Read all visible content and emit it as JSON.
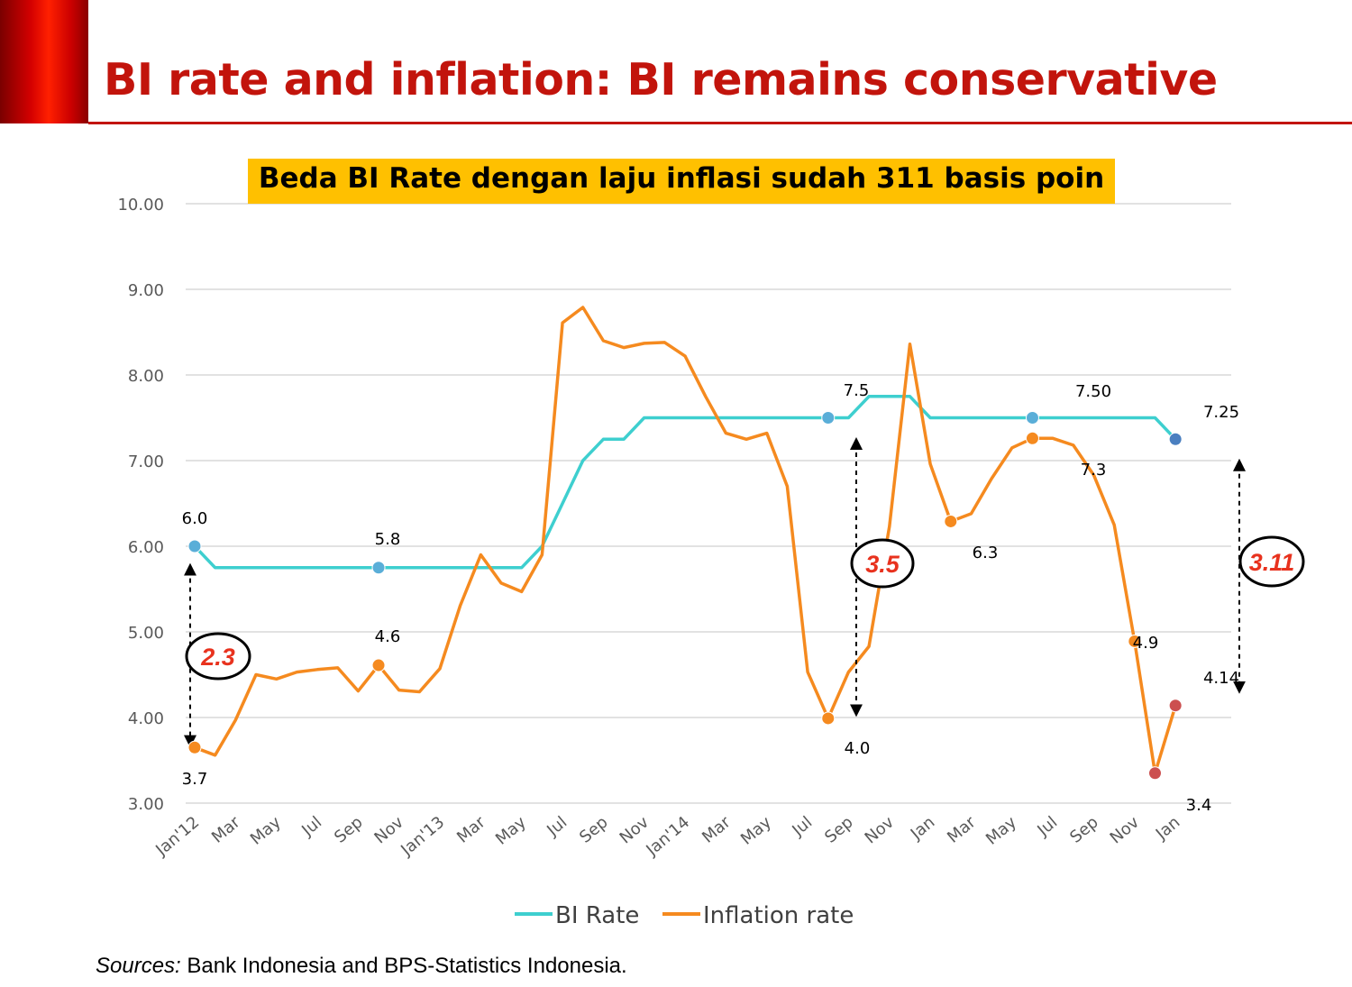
{
  "slide": {
    "title": "BI rate and inflation: BI remains conservative",
    "sources_label": "Sources:",
    "sources_text": " Bank Indonesia and BPS-Statistics Indonesia."
  },
  "colors": {
    "title": "#c2140c",
    "banner": "#ffc000",
    "bi_rate": "#3ecfcf",
    "inflation": "#f58a1f",
    "highlight_red": "#e8321e",
    "marker_blue": "#5aaed8",
    "marker_darkblue": "#4a7fc0",
    "marker_darkred": "#cc5050"
  },
  "chart_data": {
    "type": "line",
    "banner": "Beda BI Rate dengan laju inflasi sudah 311 basis poin",
    "ylim": [
      3,
      10
    ],
    "yticks": [
      "3.00",
      "4.00",
      "5.00",
      "6.00",
      "7.00",
      "8.00",
      "9.00",
      "10.00"
    ],
    "grid": true,
    "legend_position": "bottom",
    "x_tick_labels": [
      "Jan'12",
      "Mar",
      "May",
      "Jul",
      "Sep",
      "Nov",
      "Jan'13",
      "Mar",
      "May",
      "Jul",
      "Sep",
      "Nov",
      "Jan'14",
      "Mar",
      "May",
      "Jul",
      "Sep",
      "Nov",
      "Jan",
      "Mar",
      "May",
      "Jul",
      "Sep",
      "Nov",
      "Jan"
    ],
    "series": [
      {
        "name": "BI Rate",
        "values": [
          6.0,
          5.75,
          5.75,
          5.75,
          5.75,
          5.75,
          5.75,
          5.75,
          5.75,
          5.75,
          5.75,
          5.75,
          5.75,
          5.75,
          5.75,
          5.75,
          5.75,
          6.0,
          6.5,
          7.0,
          7.25,
          7.25,
          7.5,
          7.5,
          7.5,
          7.5,
          7.5,
          7.5,
          7.5,
          7.5,
          7.5,
          7.5,
          7.5,
          7.75,
          7.75,
          7.75,
          7.5,
          7.5,
          7.5,
          7.5,
          7.5,
          7.5,
          7.5,
          7.5,
          7.5,
          7.5,
          7.5,
          7.5,
          7.25
        ]
      },
      {
        "name": "Inflation rate",
        "values": [
          3.65,
          3.56,
          3.97,
          4.5,
          4.45,
          4.53,
          4.56,
          4.58,
          4.31,
          4.61,
          4.32,
          4.3,
          4.57,
          5.31,
          5.9,
          5.57,
          5.47,
          5.9,
          8.61,
          8.79,
          8.4,
          8.32,
          8.37,
          8.38,
          8.22,
          7.75,
          7.32,
          7.25,
          7.32,
          6.7,
          4.53,
          3.99,
          4.53,
          4.83,
          6.23,
          8.36,
          6.96,
          6.29,
          6.38,
          6.79,
          7.15,
          7.26,
          7.26,
          7.18,
          6.83,
          6.25,
          4.89,
          3.35,
          4.14
        ]
      }
    ],
    "point_labels": [
      {
        "series": 0,
        "index": 0,
        "text": "6.0"
      },
      {
        "series": 0,
        "index": 9,
        "text": "5.8"
      },
      {
        "series": 0,
        "index": 31,
        "text": "7.5"
      },
      {
        "series": 0,
        "index": 41,
        "text": "7.50"
      },
      {
        "series": 0,
        "index": 48,
        "text": "7.25"
      },
      {
        "series": 1,
        "index": 0,
        "text": "3.7"
      },
      {
        "series": 1,
        "index": 9,
        "text": "4.6"
      },
      {
        "series": 1,
        "index": 31,
        "text": "4.0"
      },
      {
        "series": 1,
        "index": 37,
        "text": "6.3"
      },
      {
        "series": 1,
        "index": 41,
        "text": "7.3"
      },
      {
        "series": 1,
        "index": 46,
        "text": "4.9"
      },
      {
        "series": 1,
        "index": 47,
        "text": "3.4"
      },
      {
        "series": 1,
        "index": 48,
        "text": "4.14"
      }
    ],
    "gap_annotations": [
      {
        "text": "2.3",
        "index": 0
      },
      {
        "text": "3.5",
        "index": 31
      },
      {
        "text": "3.11",
        "index": 48
      }
    ]
  }
}
